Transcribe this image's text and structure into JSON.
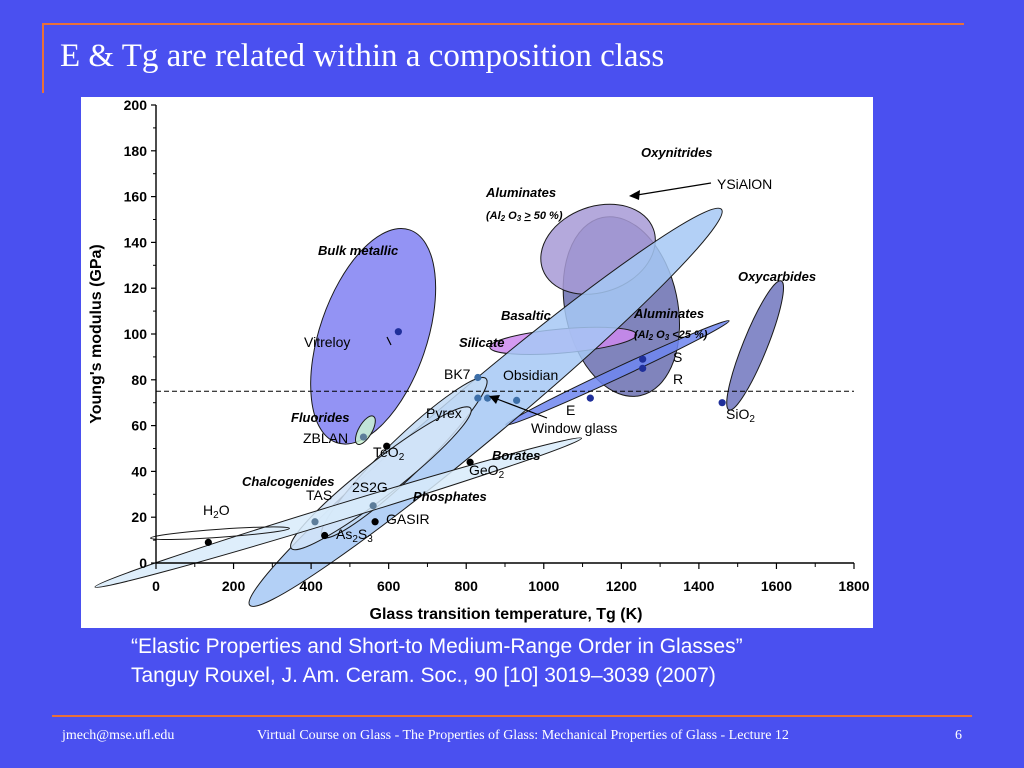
{
  "slide": {
    "title": "E & Tg are related within a composition class",
    "citation_line1": "“Elastic Properties and Short-to Medium-Range Order in Glasses”",
    "citation_line2": "Tanguy Rouxel, J. Am. Ceram. Soc., 90 [10] 3019–3039 (2007)",
    "footer_email": "jmech@mse.ufl.edu",
    "footer_course": "Virtual Course on Glass - The Properties of Glass:   Mechanical Properties of Glass - Lecture 12",
    "footer_page": "6"
  },
  "colors": {
    "background": "#4a50f0",
    "accent_rule": "#e8703a",
    "title_text": "#ffffff"
  },
  "chart_data": {
    "type": "scatter",
    "title": "",
    "xlabel": "Glass transition temperature, Tg (K)",
    "ylabel": "Young's modulus (GPa)",
    "xlim": [
      0,
      1800
    ],
    "ylim": [
      0,
      200
    ],
    "x_ticks": [
      "0",
      "200",
      "400",
      "600",
      "800",
      "1000",
      "1200",
      "1400",
      "1600",
      "1800"
    ],
    "y_ticks": [
      "0",
      "20",
      "40",
      "60",
      "80",
      "100",
      "120",
      "140",
      "160",
      "180",
      "200"
    ],
    "reference_line": {
      "y": 75,
      "style": "dashed"
    },
    "regions": [
      {
        "name": "Oxynitrides",
        "cx": 1200,
        "cy": 112,
        "rx": 42,
        "ry": 68,
        "rotation_deg": -12,
        "fill": "#6a6fb0"
      },
      {
        "name": "Aluminates (Al2O3 > 50 %)",
        "cx": 1140,
        "cy": 137,
        "rx": 44,
        "ry": 32,
        "rotation_deg": -20,
        "fill": "#a79ad6"
      },
      {
        "name": "Bulk metallic",
        "cx": 560,
        "cy": 99,
        "rx": 84,
        "ry": 40,
        "rotation_deg": -71,
        "fill": "#8080f2"
      },
      {
        "name": "Oxycarbides",
        "cx": 1545,
        "cy": 95,
        "rx": 52,
        "ry": 9,
        "rotation_deg": -68,
        "fill": "#7076be"
      },
      {
        "name": "Basaltic",
        "cx": 1050,
        "cy": 97,
        "rx": 55,
        "ry": 9,
        "rotation_deg": -5,
        "fill": "#cc88ee"
      },
      {
        "name": "Aluminates (Al2O3 <25 %)",
        "cx": 1190,
        "cy": 83,
        "rx": 92,
        "ry": 4,
        "rotation_deg": -25,
        "fill": "#6e86f0"
      },
      {
        "name": "Silicate",
        "cx": 850,
        "cy": 68,
        "rx": 230,
        "ry": 21,
        "rotation_deg": -40,
        "fill": "#a6c8f4"
      },
      {
        "name": "Borates",
        "cx": 640,
        "cy": 46,
        "rx": 85,
        "ry": 14,
        "rotation_deg": -44,
        "fill": "#c2dbf4"
      },
      {
        "name": "Phosphates",
        "cx": 580,
        "cy": 37,
        "rx": 85,
        "ry": 13,
        "rotation_deg": -38,
        "fill": "#d2e4f8"
      },
      {
        "name": "Chalcogenides",
        "cx": 470,
        "cy": 22,
        "rx": 190,
        "ry": 6,
        "rotation_deg": -17,
        "fill": "#d8ebfa"
      },
      {
        "name": "Fluorides",
        "cx": 540,
        "cy": 58,
        "rx": 12,
        "ry": 5,
        "rotation_deg": -60,
        "fill": "#c9f2d2"
      },
      {
        "name": "H2O",
        "cx": 165,
        "cy": 13,
        "rx": 52,
        "ry": 3,
        "rotation_deg": -4,
        "fill": "none"
      }
    ],
    "points": [
      {
        "label": "H2O",
        "x": 135,
        "y": 9,
        "color": "#000000"
      },
      {
        "label": "As2S3",
        "x": 435,
        "y": 12,
        "color": "#000000"
      },
      {
        "label": "GASIR",
        "x": 565,
        "y": 18,
        "color": "#000000"
      },
      {
        "label": "TAS",
        "x": 410,
        "y": 18,
        "color": "#5d7d9a"
      },
      {
        "label": "2S2G",
        "x": 560,
        "y": 25,
        "color": "#5d7d9a"
      },
      {
        "label": "TeO2",
        "x": 595,
        "y": 51,
        "color": "#000000"
      },
      {
        "label": "ZBLAN",
        "x": 535,
        "y": 55,
        "color": "#5d7d9a"
      },
      {
        "label": "GeO2",
        "x": 810,
        "y": 44,
        "color": "#000000"
      },
      {
        "label": "Pyrex",
        "x": 830,
        "y": 72,
        "color": "#3d6fa8"
      },
      {
        "label": "BK7",
        "x": 830,
        "y": 81,
        "color": "#3d6fa8"
      },
      {
        "label": "Window glass",
        "x": 855,
        "y": 72,
        "color": "#3d6fa8"
      },
      {
        "label": "Obsidian",
        "x": 930,
        "y": 71,
        "color": "#3d6fa8"
      },
      {
        "label": "Vitreloy",
        "x": 625,
        "y": 101,
        "color": "#1f2f9a"
      },
      {
        "label": "E",
        "x": 1120,
        "y": 72,
        "color": "#1f2f9a"
      },
      {
        "label": "S",
        "x": 1255,
        "y": 89,
        "color": "#1f2f9a"
      },
      {
        "label": "R",
        "x": 1255,
        "y": 85,
        "color": "#1f2f9a"
      },
      {
        "label": "SiO2",
        "x": 1460,
        "y": 70,
        "color": "#1f2f9a"
      }
    ]
  }
}
